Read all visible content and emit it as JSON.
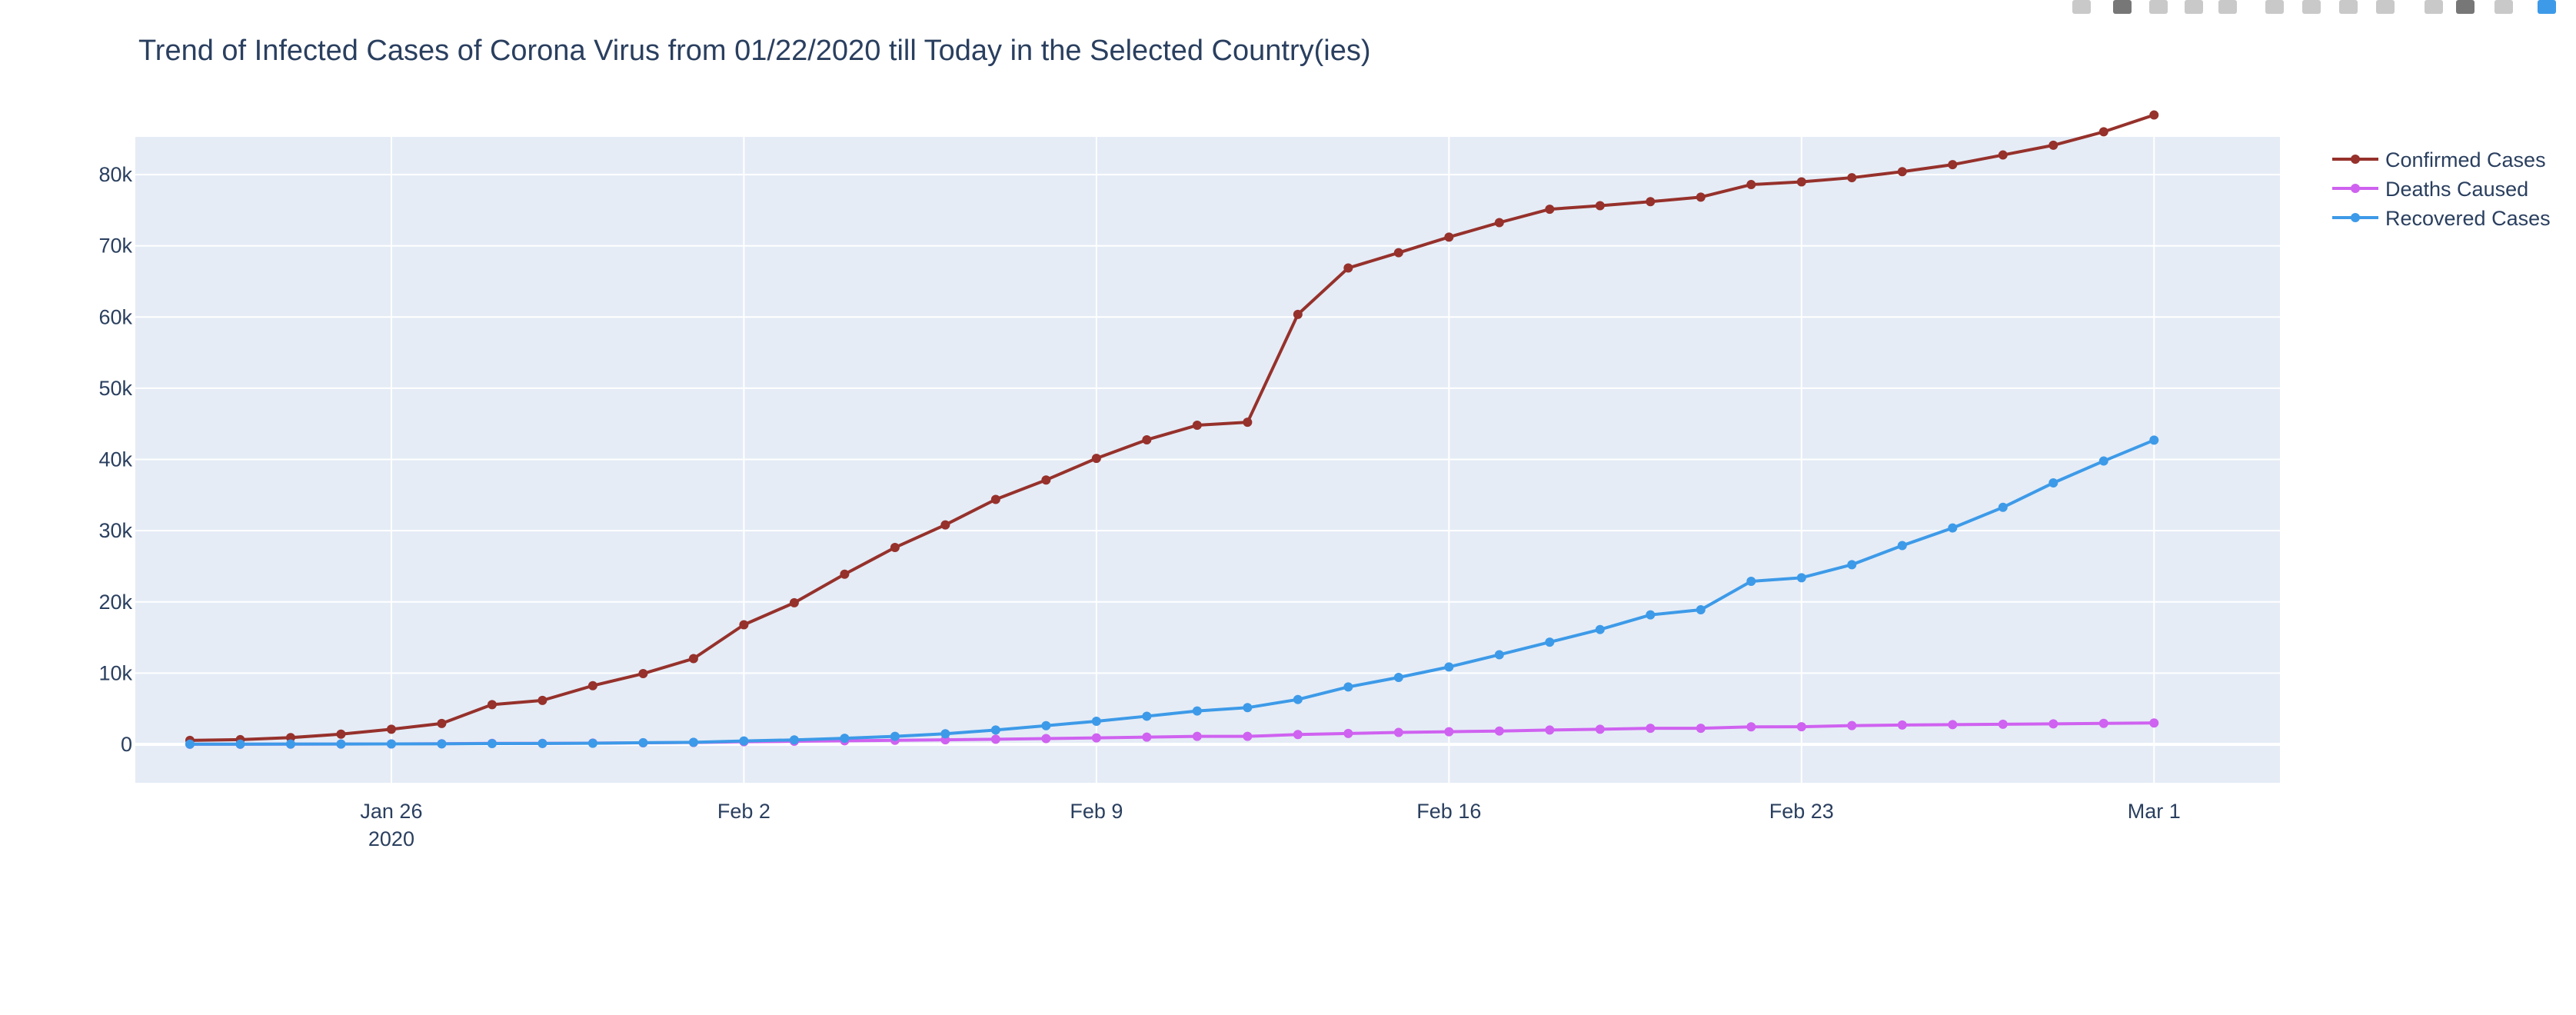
{
  "chart_data": {
    "type": "line",
    "title": "Trend of Infected Cases of Corona Virus from 01/22/2020 till Today in the Selected Country(ies)",
    "xlabel": "",
    "ylabel": "",
    "x_start": "2020-01-22",
    "x": [
      "2020-01-22",
      "2020-01-23",
      "2020-01-24",
      "2020-01-25",
      "2020-01-26",
      "2020-01-27",
      "2020-01-28",
      "2020-01-29",
      "2020-01-30",
      "2020-01-31",
      "2020-02-01",
      "2020-02-02",
      "2020-02-03",
      "2020-02-04",
      "2020-02-05",
      "2020-02-06",
      "2020-02-07",
      "2020-02-08",
      "2020-02-09",
      "2020-02-10",
      "2020-02-11",
      "2020-02-12",
      "2020-02-13",
      "2020-02-14",
      "2020-02-15",
      "2020-02-16",
      "2020-02-17",
      "2020-02-18",
      "2020-02-19",
      "2020-02-20",
      "2020-02-21",
      "2020-02-22",
      "2020-02-23",
      "2020-02-24",
      "2020-02-25",
      "2020-02-26",
      "2020-02-27",
      "2020-02-28",
      "2020-02-29",
      "2020-03-01"
    ],
    "xlim": [
      "2020-01-20T22:00",
      "2020-03-03T12:00"
    ],
    "ylim": [
      -5400,
      85300
    ],
    "x_ticks": [
      {
        "date": "2020-01-26",
        "label": "Jan 26",
        "sublabel": "2020"
      },
      {
        "date": "2020-02-02",
        "label": "Feb 2",
        "sublabel": ""
      },
      {
        "date": "2020-02-09",
        "label": "Feb 9",
        "sublabel": ""
      },
      {
        "date": "2020-02-16",
        "label": "Feb 16",
        "sublabel": ""
      },
      {
        "date": "2020-02-23",
        "label": "Feb 23",
        "sublabel": ""
      },
      {
        "date": "2020-03-01",
        "label": "Mar 1",
        "sublabel": ""
      }
    ],
    "y_ticks": [
      {
        "value": 0,
        "label": "0"
      },
      {
        "value": 10000,
        "label": "10k"
      },
      {
        "value": 20000,
        "label": "20k"
      },
      {
        "value": 30000,
        "label": "30k"
      },
      {
        "value": 40000,
        "label": "40k"
      },
      {
        "value": 50000,
        "label": "50k"
      },
      {
        "value": 60000,
        "label": "60k"
      },
      {
        "value": 70000,
        "label": "70k"
      },
      {
        "value": 80000,
        "label": "80k"
      }
    ],
    "grid": true,
    "legend_position": "top-right",
    "series": [
      {
        "name": "Confirmed Cases",
        "color": "#96312b",
        "values": [
          555,
          654,
          941,
          1434,
          2118,
          2927,
          5578,
          6166,
          8234,
          9927,
          12038,
          16787,
          19881,
          23892,
          27636,
          30818,
          34392,
          37121,
          40151,
          42763,
          44803,
          45222,
          60370,
          66887,
          69032,
          71226,
          73260,
          75138,
          75641,
          76199,
          76843,
          78599,
          78985,
          79570,
          80415,
          81397,
          82756,
          84124,
          86013,
          88371
        ]
      },
      {
        "name": "Deaths Caused",
        "color": "#cf62f0",
        "values": [
          17,
          18,
          26,
          42,
          56,
          82,
          131,
          133,
          171,
          213,
          259,
          362,
          426,
          492,
          564,
          634,
          719,
          806,
          906,
          1013,
          1113,
          1118,
          1371,
          1523,
          1666,
          1770,
          1868,
          2007,
          2122,
          2247,
          2251,
          2458,
          2469,
          2629,
          2708,
          2770,
          2814,
          2872,
          2941,
          2996
        ]
      },
      {
        "name": "Recovered Cases",
        "color": "#3d9ae8",
        "values": [
          28,
          30,
          36,
          39,
          52,
          61,
          107,
          126,
          143,
          222,
          284,
          472,
          623,
          852,
          1124,
          1487,
          2011,
          2616,
          3244,
          3946,
          4683,
          5150,
          6295,
          8058,
          9395,
          10865,
          12583,
          14352,
          16121,
          18177,
          18890,
          22886,
          23394,
          25227,
          27905,
          30384,
          33277,
          36711,
          39782,
          42716
        ]
      }
    ]
  },
  "modebar": {
    "icons": [
      "camera-icon",
      "zoom-icon",
      "pan-icon",
      "box-select-icon",
      "lasso-icon",
      "zoom-in-icon",
      "zoom-out-icon",
      "autoscale-icon",
      "reset-axes-icon",
      "spikelines-icon",
      "hover-closest-icon",
      "hover-compare-icon",
      "plotly-logo-icon"
    ]
  }
}
